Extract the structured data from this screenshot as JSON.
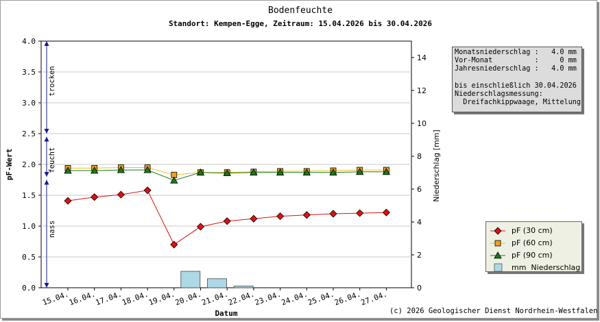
{
  "title": "Bodenfeuchte",
  "subtitle": "Standort: Kempen-Egge, Zeitraum: 15.04.2026 bis 30.04.2026",
  "copyright": "(c) 2026 Geologischer Dienst Nordrhein-Westfalen",
  "info_box": {
    "lines": [
      "Monatsniederschlag :   4.0 mm",
      "Vor-Monat          :     0 mm",
      "Jahresniederschlag :   4.0 mm",
      "",
      "bis einschließlich 30.04.2026",
      "Niederschlagsmessung:",
      "  Dreifachkippwaage, Mittelung"
    ]
  },
  "zones": [
    "trocken",
    "feucht",
    "nass"
  ],
  "colors": {
    "pf30": "#dd1111",
    "pf60": "#f0a020",
    "pf60_line": "#e8c020",
    "pf90": "#1a7a1a",
    "precip": "#add8e6",
    "arrow": "#1a1a8a",
    "grid": "#c8c8c8"
  },
  "legend": [
    {
      "label": "pF (30 cm)",
      "icon": "red-diamond-marker"
    },
    {
      "label": "pF (60 cm)",
      "icon": "orange-square-marker"
    },
    {
      "label": "pF (90 cm)",
      "icon": "green-triangle-marker"
    },
    {
      "label": "mm  Niederschlag",
      "icon": "lightblue-bar"
    }
  ],
  "chart_data": {
    "type": "line",
    "title": "Bodenfeuchte",
    "subtitle": "Standort: Kempen-Egge, Zeitraum: 15.04.2026 bis 30.04.2026",
    "xlabel": "Datum",
    "ylabel": "pF-Wert",
    "y2label": "Niederschlag [mm]",
    "categories": [
      "15.04.",
      "16.04.",
      "17.04.",
      "18.04.",
      "19.04.",
      "20.04.",
      "21.04.",
      "22.04.",
      "23.04.",
      "24.04.",
      "25.04.",
      "26.04.",
      "27.04."
    ],
    "ylim": [
      0,
      4
    ],
    "yticks": [
      "0.0",
      "0.5",
      "1.0",
      "1.5",
      "2.0",
      "2.5",
      "3.0",
      "3.5",
      "4.0"
    ],
    "y2lim": [
      0,
      15
    ],
    "y2ticks": [
      "0",
      "2",
      "4",
      "6",
      "8",
      "10",
      "12",
      "14"
    ],
    "grid": true,
    "legend_position": "bottom-right",
    "series": [
      {
        "name": "pF (30 cm)",
        "axis": "left",
        "marker": "diamond",
        "values": [
          1.41,
          1.47,
          1.51,
          1.58,
          0.7,
          0.99,
          1.08,
          1.12,
          1.16,
          1.18,
          1.2,
          1.21,
          1.22
        ]
      },
      {
        "name": "pF (60 cm)",
        "axis": "left",
        "marker": "square",
        "values": [
          1.94,
          1.94,
          1.95,
          1.95,
          1.83,
          1.87,
          1.87,
          1.88,
          1.89,
          1.89,
          1.9,
          1.91,
          1.91
        ]
      },
      {
        "name": "pF (90 cm)",
        "axis": "left",
        "marker": "triangle",
        "values": [
          1.9,
          1.9,
          1.91,
          1.91,
          1.74,
          1.87,
          1.86,
          1.87,
          1.87,
          1.87,
          1.87,
          1.88,
          1.88
        ]
      },
      {
        "name": "mm  Niederschlag",
        "axis": "right",
        "type": "bar",
        "values": [
          0,
          0,
          0,
          0,
          1.0,
          0.55,
          0.1,
          0,
          0,
          0,
          0,
          0,
          0
        ]
      }
    ]
  }
}
